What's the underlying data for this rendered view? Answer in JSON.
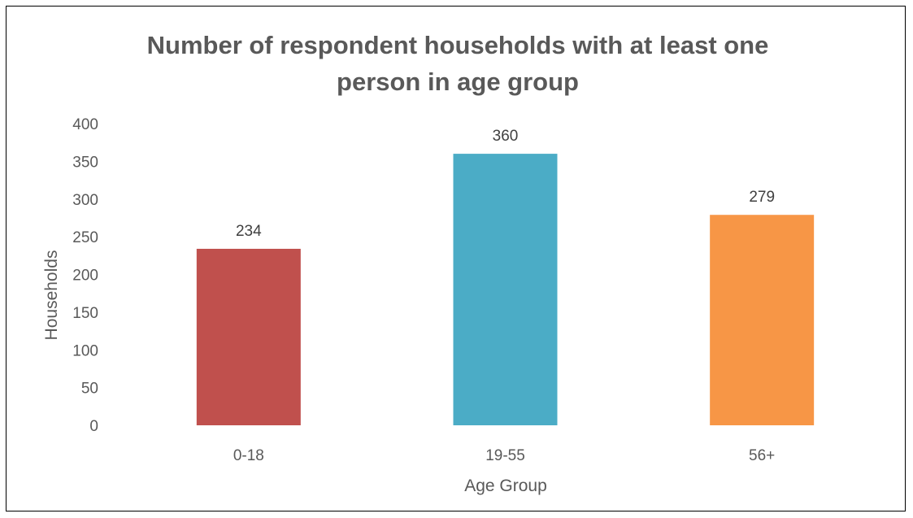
{
  "chart_data": {
    "type": "bar",
    "title_lines": [
      "Number of respondent households with at least one",
      "person in age group"
    ],
    "xlabel": "Age Group",
    "ylabel": "Households",
    "categories": [
      "0-18",
      "19-55",
      "56+"
    ],
    "values": [
      234,
      360,
      279
    ],
    "data_labels": [
      "234",
      "360",
      "279"
    ],
    "bar_colors": [
      "#C0504D",
      "#4BACC6",
      "#F79646"
    ],
    "ylim": [
      0,
      400
    ],
    "yticks": [
      0,
      50,
      100,
      150,
      200,
      250,
      300,
      350,
      400
    ],
    "grid": false,
    "legend": "none"
  }
}
